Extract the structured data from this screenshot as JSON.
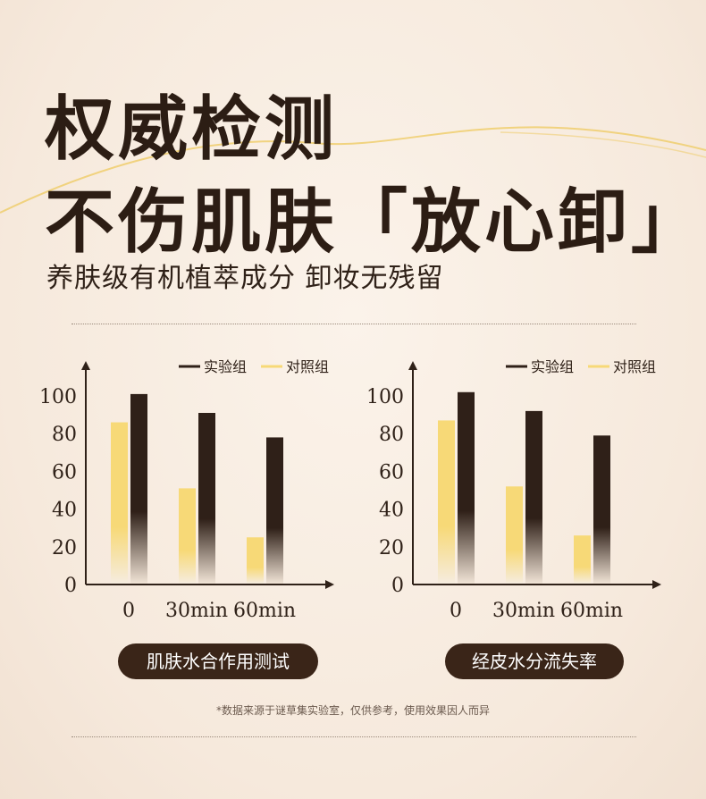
{
  "header": {
    "title_line1": "权威检测",
    "title_line2": "不伤肌肤「放心卸」",
    "subtitle": "养肤级有机植萃成分 卸妆无残留"
  },
  "colors": {
    "experiment": "#2f2018",
    "control": "#f7d977",
    "accent_curve": "#f0cf73",
    "pill_bg": "#3a2518"
  },
  "chart_data": [
    {
      "type": "bar",
      "caption": "肌肤水合作用测试",
      "categories": [
        "0",
        "30min",
        "60min"
      ],
      "series": [
        {
          "name": "实验组",
          "values": [
            101,
            91,
            78
          ]
        },
        {
          "name": "对照组",
          "values": [
            86,
            51,
            25
          ]
        }
      ],
      "ylim": [
        0,
        100
      ],
      "yticks": [
        "0",
        "20",
        "40",
        "60",
        "80",
        "100"
      ],
      "legend": "top-right",
      "grid": false
    },
    {
      "type": "bar",
      "caption": "经皮水分流失率",
      "categories": [
        "0",
        "30min",
        "60min"
      ],
      "series": [
        {
          "name": "实验组",
          "values": [
            102,
            92,
            79
          ]
        },
        {
          "name": "对照组",
          "values": [
            87,
            52,
            26
          ]
        }
      ],
      "ylim": [
        0,
        100
      ],
      "yticks": [
        "0",
        "20",
        "40",
        "60",
        "80",
        "100"
      ],
      "legend": "top-right",
      "grid": false
    }
  ],
  "footer": {
    "note": "*数据来源于谜草集实验室，仅供参考，使用效果因人而异"
  }
}
